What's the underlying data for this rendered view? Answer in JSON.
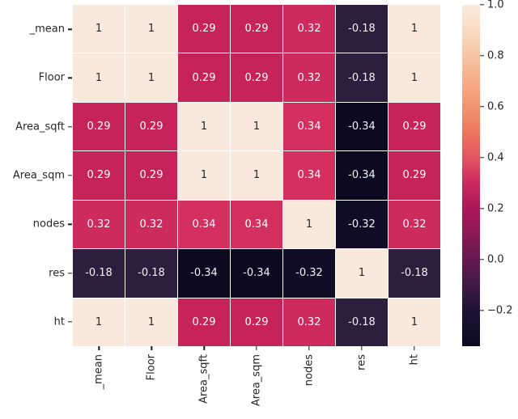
{
  "figure": {
    "background_color": "#ffffff",
    "text_color": "#262626"
  },
  "chart_data": {
    "type": "heatmap",
    "title": "",
    "xlabel": "",
    "ylabel": "",
    "colormap": "rocket",
    "grid": false,
    "row_labels": [
      "_mean",
      "Floor",
      "Area_sqft",
      "Area_sqm",
      "nodes",
      "res",
      "ht"
    ],
    "col_labels": [
      "_mean",
      "Floor",
      "Area_sqft",
      "Area_sqm",
      "nodes",
      "res",
      "ht"
    ],
    "matrix": [
      [
        1,
        1,
        0.29,
        0.29,
        0.32,
        -0.18,
        1
      ],
      [
        1,
        1,
        0.29,
        0.29,
        0.32,
        -0.18,
        1
      ],
      [
        0.29,
        0.29,
        1,
        1,
        0.34,
        -0.34,
        0.29
      ],
      [
        0.29,
        0.29,
        1,
        1,
        0.34,
        -0.34,
        0.29
      ],
      [
        0.32,
        0.32,
        0.34,
        0.34,
        1,
        -0.32,
        0.32
      ],
      [
        -0.18,
        -0.18,
        -0.34,
        -0.34,
        -0.32,
        1,
        -0.18
      ],
      [
        1,
        1,
        0.29,
        0.29,
        0.32,
        -0.18,
        1
      ]
    ],
    "cell_text": [
      [
        "1",
        "1",
        "0.29",
        "0.29",
        "0.32",
        "-0.18",
        "1"
      ],
      [
        "1",
        "1",
        "0.29",
        "0.29",
        "0.32",
        "-0.18",
        "1"
      ],
      [
        "0.29",
        "0.29",
        "1",
        "1",
        "0.34",
        "-0.34",
        "0.29"
      ],
      [
        "0.29",
        "0.29",
        "1",
        "1",
        "0.34",
        "-0.34",
        "0.29"
      ],
      [
        "0.32",
        "0.32",
        "0.34",
        "0.34",
        "1",
        "-0.32",
        "0.32"
      ],
      [
        "-0.18",
        "-0.18",
        "-0.34",
        "-0.34",
        "-0.32",
        "1",
        "-0.18"
      ],
      [
        "1",
        "1",
        "0.29",
        "0.29",
        "0.32",
        "-0.18",
        "1"
      ]
    ],
    "cell_styles": {
      "1": {
        "bg": "#f9e9dc",
        "fg": "#262626"
      },
      "0.34": {
        "bg": "#d3305f",
        "fg": "#ffffff"
      },
      "0.32": {
        "bg": "#cd2a5d",
        "fg": "#ffffff"
      },
      "0.29": {
        "bg": "#c62359",
        "fg": "#ffffff"
      },
      "-0.18": {
        "bg": "#2e1e3e",
        "fg": "#f2f2f2"
      },
      "-0.32": {
        "bg": "#110d27",
        "fg": "#f2f2f2"
      },
      "-0.34": {
        "bg": "#0b0a21",
        "fg": "#f2f2f2"
      }
    },
    "gridline_color": "#ffffff",
    "vmin": -0.34,
    "vmax": 1.0,
    "colorbar": {
      "position": "right",
      "ticks": [
        {
          "value": 1.0,
          "label": "1.0"
        },
        {
          "value": 0.8,
          "label": "0.8"
        },
        {
          "value": 0.6,
          "label": "0.6"
        },
        {
          "value": 0.4,
          "label": "0.4"
        },
        {
          "value": 0.2,
          "label": "0.2"
        },
        {
          "value": 0.0,
          "label": "0.0"
        },
        {
          "value": -0.2,
          "label": "−0.2"
        }
      ],
      "gradient": [
        {
          "pos": 0,
          "color": "#faebdd"
        },
        {
          "pos": 7.5,
          "color": "#f8dcc2"
        },
        {
          "pos": 14.9,
          "color": "#f6c5a3"
        },
        {
          "pos": 22.4,
          "color": "#f4ad87"
        },
        {
          "pos": 29.9,
          "color": "#f2946f"
        },
        {
          "pos": 37.3,
          "color": "#ed765e"
        },
        {
          "pos": 44.8,
          "color": "#e25560"
        },
        {
          "pos": 52.2,
          "color": "#cb2a5e"
        },
        {
          "pos": 59.7,
          "color": "#ab1759"
        },
        {
          "pos": 67.2,
          "color": "#8a1a55"
        },
        {
          "pos": 74.6,
          "color": "#65194f"
        },
        {
          "pos": 82.1,
          "color": "#401a45"
        },
        {
          "pos": 89.6,
          "color": "#1f1335"
        },
        {
          "pos": 100,
          "color": "#0a0a20"
        }
      ]
    }
  }
}
